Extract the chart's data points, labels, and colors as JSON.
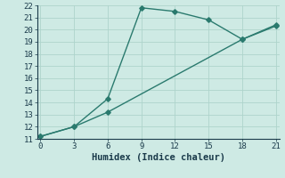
{
  "line1_x": [
    0,
    3,
    6,
    9,
    12,
    15,
    18,
    21
  ],
  "line1_y": [
    11.2,
    12.0,
    14.3,
    21.8,
    21.5,
    20.8,
    19.2,
    20.3
  ],
  "line2_x": [
    0,
    3,
    6,
    18,
    21
  ],
  "line2_y": [
    11.2,
    12.0,
    13.2,
    19.2,
    20.4
  ],
  "line_color": "#2a7a6e",
  "bg_color": "#ceeae4",
  "grid_color": "#aed4cc",
  "xlabel": "Humidex (Indice chaleur)",
  "xlim": [
    -0.3,
    21.3
  ],
  "ylim": [
    11,
    22
  ],
  "xticks": [
    0,
    3,
    6,
    9,
    12,
    15,
    18,
    21
  ],
  "yticks": [
    11,
    12,
    13,
    14,
    15,
    16,
    17,
    18,
    19,
    20,
    21,
    22
  ],
  "marker": "D",
  "markersize": 2.8,
  "linewidth": 1.0,
  "font_color": "#1a3a4a",
  "xlabel_fontsize": 7.5,
  "tick_fontsize": 6.5
}
